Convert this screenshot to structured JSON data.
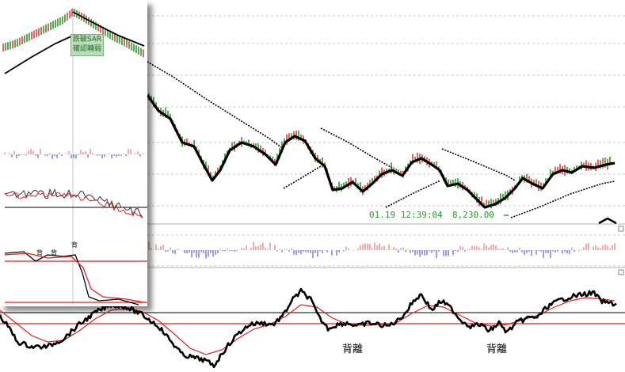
{
  "chart_data": {
    "type": "line",
    "cursor_readout": {
      "time": "01.19 12:39:04",
      "price": "8,230.00"
    },
    "divergence_labels": [
      "背離",
      "背離"
    ],
    "inset": {
      "sar_box_lines": [
        "跌破SAR",
        "確認轉弱"
      ],
      "mini_labels": [
        "背",
        "背",
        "背"
      ]
    },
    "colors": {
      "up": "#e04040",
      "down": "#2a9a2a",
      "signal": "#e02020",
      "osc": "#000000"
    }
  }
}
